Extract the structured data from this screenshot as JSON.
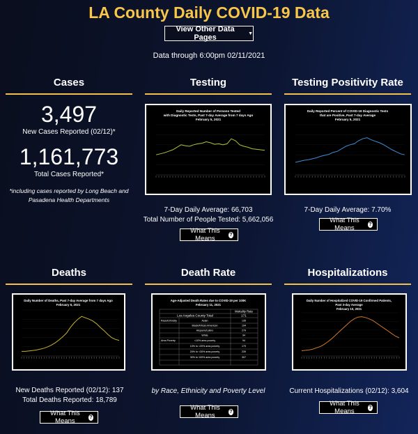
{
  "header": {
    "title": "LA County Daily COVID-19 Data",
    "nav_button": "View Other Data Pages",
    "data_through": "Data through 6:00pm 02/11/2021"
  },
  "cases": {
    "title": "Cases",
    "new_cases": "3,497",
    "new_cases_label": "New Cases Reported (02/12)*",
    "total_cases": "1,161,773",
    "total_cases_label": "Total Cases Reported*",
    "note": "*including cases reported by Long Beach and Pasadena Health Departments"
  },
  "testing": {
    "title": "Testing",
    "chart_title": "Daily Reported Number of Persons Tested with Diagnostic Tests, Past 7-day Average from 7 days Ago February 5, 2021",
    "chart_title_l1": "Daily Reported Number of Persons Tested",
    "chart_title_l2": "with Diagnostic Tests, Past 7-day Average from 7 days Ago",
    "chart_title_l3": "February 5, 2021",
    "stat1": "7-Day Daily Average: 66,703",
    "stat2": "Total Number of People Tested: 5,662,056",
    "button": "What This Means"
  },
  "positivity": {
    "title": "Testing Positivity Rate",
    "chart_title_l1": "Daily Reported Percent of COVID-19 Diagnostic Tests",
    "chart_title_l2": "that are Positive, Past 7-day Average",
    "chart_title_l3": "February 5, 2021",
    "stat1": "7-Day Daily Average: 7.70%",
    "button": "What This Means"
  },
  "deaths": {
    "title": "Deaths",
    "chart_title_l1": "Daily Number of Deaths, Past 7-day Average from 7 days Ago",
    "chart_title_l2": "February 5, 2021",
    "stat1": "New Deaths Reported (02/12): 137",
    "stat2": "Total Deaths Reported: 18,789",
    "button": "What This Means"
  },
  "death_rate": {
    "title": "Death Rate",
    "chart_title_l1": "Age-Adjusted Death Rates due to COVID-19 per 100K",
    "chart_title_l2": "February 11, 2021",
    "col_header": "Mortality Rate",
    "county_label": "Los Angeles County Total",
    "county_value": "171",
    "rows": [
      {
        "group": "Race/Ethnicity",
        "label": "Asian",
        "value": "135"
      },
      {
        "group": "",
        "label": "Black/African American",
        "value": "194"
      },
      {
        "group": "",
        "label": "Hispanic/Latino",
        "value": "279"
      },
      {
        "group": "",
        "label": "White",
        "value": "94"
      },
      {
        "group": "Area Poverty",
        "label": "<10% area poverty",
        "value": "94"
      },
      {
        "group": "",
        "label": "10% to <20% area poverty",
        "value": "179"
      },
      {
        "group": "",
        "label": "20% to <30% area poverty",
        "value": "239"
      },
      {
        "group": "",
        "label": "30% to 100% area poverty",
        "value": "307"
      }
    ],
    "subtitle": "by Race, Ethnicity and Poverty Level",
    "button": "What This Means"
  },
  "hospitalizations": {
    "title": "Hospitalizations",
    "chart_title_l1": "Daily Number of Hospitalized COVID-19 Confirmed Patients,",
    "chart_title_l2": "Past 3-day Average",
    "chart_title_l3": "February 10, 2021",
    "stat1": "Current Hospitalizations (02/12): 3,604",
    "button": "What This Means"
  },
  "colors": {
    "accent": "#f7c64a",
    "testing_line": "#b5c23a",
    "positivity_line": "#3f8fd6",
    "deaths_line": "#c8b52a",
    "hosp_line": "#d07a2a"
  },
  "chart_data": [
    {
      "type": "line",
      "series": [
        {
          "values": [
            40,
            42,
            44,
            47,
            50,
            55,
            60,
            58,
            57,
            60,
            62,
            63,
            66,
            64,
            61,
            62,
            60,
            62,
            72,
            68,
            60,
            57,
            55,
            52,
            51,
            50,
            49
          ]
        }
      ]
    },
    {
      "type": "line",
      "series": [
        {
          "values": [
            25,
            27,
            29,
            30,
            32,
            34,
            37,
            39,
            41,
            45,
            47,
            52,
            57,
            60,
            62,
            68,
            72,
            74,
            70,
            67,
            64,
            60,
            55,
            50,
            46,
            42,
            40
          ]
        }
      ]
    },
    {
      "type": "line",
      "series": [
        {
          "values": [
            10,
            10,
            11,
            12,
            13,
            15,
            17,
            20,
            24,
            29,
            35,
            42,
            50,
            62,
            72,
            80,
            86,
            83,
            80,
            76,
            70,
            62,
            55,
            47,
            40,
            36,
            34
          ]
        }
      ]
    },
    {
      "type": "line",
      "series": [
        {
          "values": [
            12,
            13,
            14,
            16,
            19,
            22,
            27,
            33,
            40,
            48,
            56,
            64,
            72,
            80,
            86,
            90,
            91,
            89,
            86,
            82,
            76,
            70,
            64,
            58,
            52,
            46,
            42
          ]
        }
      ]
    }
  ]
}
